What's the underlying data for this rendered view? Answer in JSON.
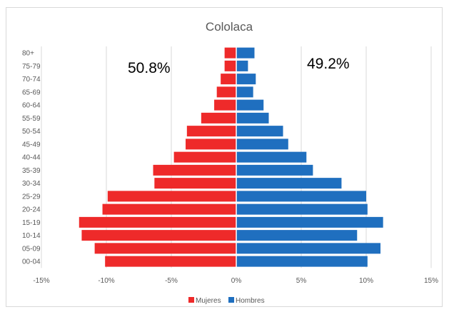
{
  "chart_data": {
    "type": "bar",
    "orientation": "horizontal",
    "title": "Cololaca",
    "categories": [
      "00-04",
      "05-09",
      "10-14",
      "15-19",
      "20-24",
      "25-29",
      "30-34",
      "35-39",
      "40-44",
      "45-49",
      "50-54",
      "55-59",
      "60-64",
      "65-69",
      "70-74",
      "75-79",
      "80+"
    ],
    "series": [
      {
        "name": "Mujeres",
        "color": "#ee2a2a",
        "values": [
          -10.1,
          -10.9,
          -11.9,
          -12.1,
          -10.3,
          -9.9,
          -6.3,
          -6.4,
          -4.8,
          -3.9,
          -3.8,
          -2.7,
          -1.7,
          -1.5,
          -1.2,
          -0.9,
          -0.9
        ]
      },
      {
        "name": "Hombres",
        "color": "#1f6fbf",
        "values": [
          10.1,
          11.1,
          9.3,
          11.3,
          10.1,
          10.0,
          8.1,
          5.9,
          5.4,
          4.0,
          3.6,
          2.5,
          2.1,
          1.3,
          1.5,
          0.9,
          1.4
        ]
      }
    ],
    "xlim": [
      -15,
      15
    ],
    "xticks": [
      -15,
      -10,
      -5,
      0,
      5,
      10,
      15
    ],
    "xtick_labels": [
      "-15%",
      "-10%",
      "-5%",
      "0%",
      "5%",
      "10%",
      "15%"
    ],
    "grid": "vertical",
    "legend": "bottom",
    "annotations": [
      {
        "text": "50.8%",
        "side": "left"
      },
      {
        "text": "49.2%",
        "side": "right"
      }
    ]
  }
}
